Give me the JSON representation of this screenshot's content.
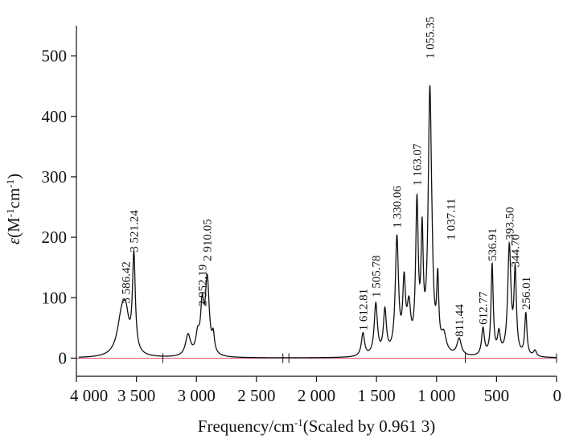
{
  "chart_data": {
    "type": "line",
    "xlabel": "Frequency/cm",
    "xlabel_sup": "-1",
    "xlabel_suffix": "(Scaled by 0.961 3)",
    "ylabel_symbol": "ε",
    "ylabel_unit_open": "(M",
    "ylabel_sup1": "-1",
    "ylabel_unit_mid": "cm",
    "ylabel_sup2": "-1",
    "ylabel_unit_close": ")",
    "xlim": [
      4000,
      0
    ],
    "ylim": [
      -30,
      550
    ],
    "x_ticks": [
      {
        "value": 4000,
        "label": "4 000"
      },
      {
        "value": 3500,
        "label": "3 500"
      },
      {
        "value": 3000,
        "label": "3 000"
      },
      {
        "value": 2500,
        "label": "2 500"
      },
      {
        "value": 2000,
        "label": "2 000"
      },
      {
        "value": 1500,
        "label": "1 500"
      },
      {
        "value": 1000,
        "label": "1 000"
      },
      {
        "value": 500,
        "label": "500"
      },
      {
        "value": 0,
        "label": "0"
      }
    ],
    "y_ticks": [
      {
        "value": 0,
        "label": "0"
      },
      {
        "value": 100,
        "label": "100"
      },
      {
        "value": 200,
        "label": "200"
      },
      {
        "value": 300,
        "label": "300"
      },
      {
        "value": 400,
        "label": "400"
      },
      {
        "value": 500,
        "label": "500"
      }
    ],
    "baseline_color": "#d9546c",
    "line_color": "#111111",
    "baseline_ticks": [
      3280,
      2280,
      2230,
      760,
      0
    ],
    "series": [
      {
        "peaks": [
          {
            "x": 3620,
            "height": 70,
            "width": 45
          },
          {
            "x": 3586.42,
            "height": 40,
            "width": 28
          },
          {
            "x": 3521.24,
            "height": 160,
            "width": 14
          },
          {
            "x": 3070,
            "height": 35,
            "width": 25
          },
          {
            "x": 2990,
            "height": 30,
            "width": 18
          },
          {
            "x": 2952.19,
            "height": 75,
            "width": 16
          },
          {
            "x": 2910.05,
            "height": 125,
            "width": 20
          },
          {
            "x": 2860,
            "height": 28,
            "width": 12
          },
          {
            "x": 1612.81,
            "height": 38,
            "width": 16
          },
          {
            "x": 1505.78,
            "height": 85,
            "width": 16
          },
          {
            "x": 1430,
            "height": 72,
            "width": 15
          },
          {
            "x": 1330.06,
            "height": 190,
            "width": 16
          },
          {
            "x": 1270,
            "height": 110,
            "width": 14
          },
          {
            "x": 1230,
            "height": 70,
            "width": 18
          },
          {
            "x": 1163.07,
            "height": 240,
            "width": 13
          },
          {
            "x": 1120,
            "height": 180,
            "width": 11
          },
          {
            "x": 1055.35,
            "height": 430,
            "width": 17
          },
          {
            "x": 1037.11,
            "height": 30,
            "width": 10
          },
          {
            "x": 990,
            "height": 110,
            "width": 10
          },
          {
            "x": 940,
            "height": 30,
            "width": 25
          },
          {
            "x": 811.44,
            "height": 28,
            "width": 22
          },
          {
            "x": 612.77,
            "height": 45,
            "width": 14
          },
          {
            "x": 536.91,
            "height": 150,
            "width": 11
          },
          {
            "x": 480,
            "height": 35,
            "width": 14
          },
          {
            "x": 393.5,
            "height": 180,
            "width": 16
          },
          {
            "x": 344.7,
            "height": 135,
            "width": 12
          },
          {
            "x": 256.01,
            "height": 70,
            "width": 11
          },
          {
            "x": 180,
            "height": 10,
            "width": 15
          }
        ]
      }
    ],
    "annotations": [
      {
        "text": "3 586.42",
        "x": 3586.42,
        "y": 85
      },
      {
        "text": "3 521.24",
        "x": 3521.24,
        "y": 170
      },
      {
        "text": "2 952.19",
        "x": 2952.19,
        "y": 80
      },
      {
        "text": "2 910.05",
        "x": 2910.05,
        "y": 155
      },
      {
        "text": "1 612.81",
        "x": 1612.81,
        "y": 40
      },
      {
        "text": "1 505.78",
        "x": 1505.78,
        "y": 95
      },
      {
        "text": "1 330.06",
        "x": 1330.06,
        "y": 210
      },
      {
        "text": "1 163.07",
        "x": 1163.07,
        "y": 280
      },
      {
        "text": "1 055.35",
        "x": 1055.35,
        "y": 490
      },
      {
        "text": "1 037.11",
        "x": 880,
        "y": 190
      },
      {
        "text": "811.44",
        "x": 811.44,
        "y": 30
      },
      {
        "text": "612.77",
        "x": 612.77,
        "y": 50
      },
      {
        "text": "536.91",
        "x": 536.91,
        "y": 155
      },
      {
        "text": "393.50",
        "x": 393.5,
        "y": 190
      },
      {
        "text": "344.70",
        "x": 344.7,
        "y": 145
      },
      {
        "text": "256.01",
        "x": 256.01,
        "y": 75
      }
    ]
  }
}
